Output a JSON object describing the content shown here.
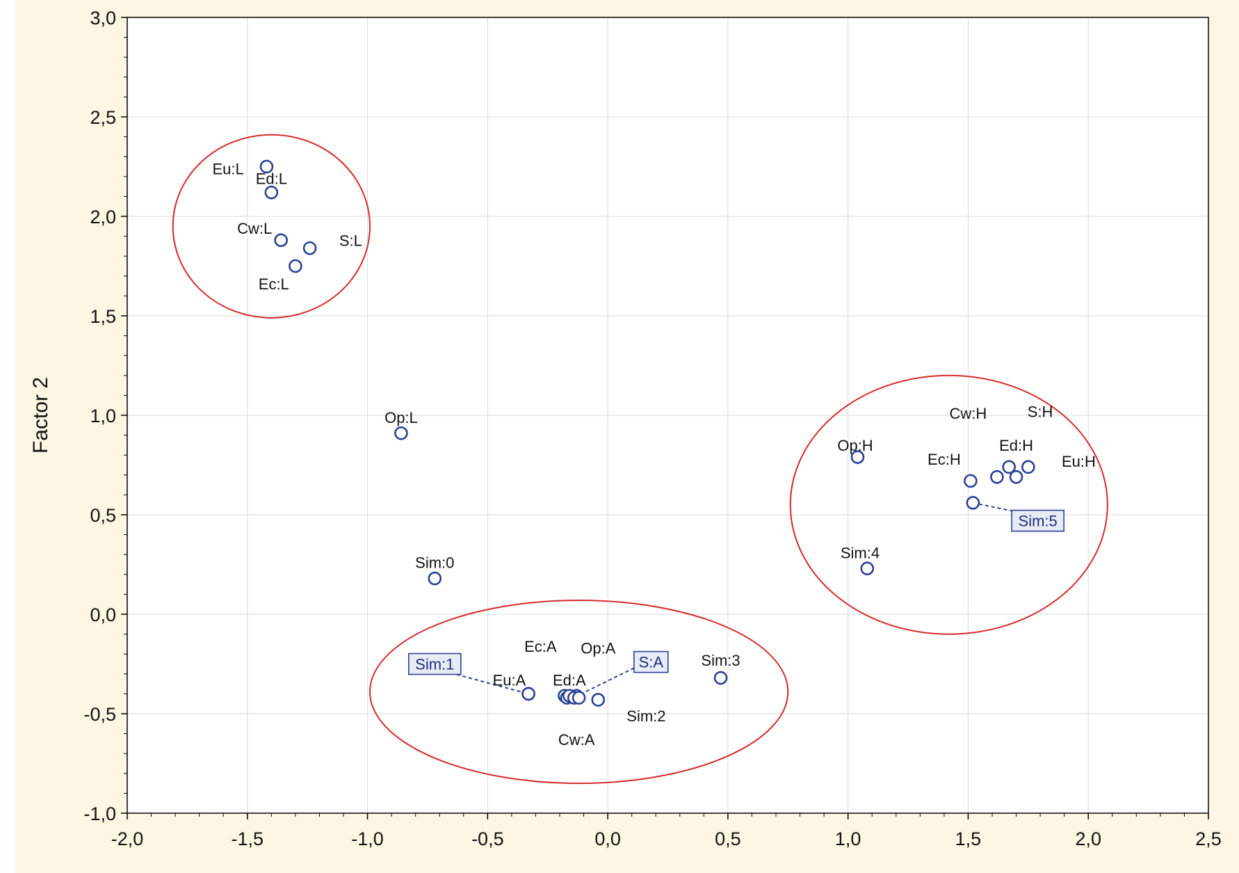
{
  "colors": {
    "background_panel": "#fdf6e3",
    "plot_background": "#ffffff",
    "grid": "#d9d9d9",
    "marker": "#2b3f96",
    "ellipse": "#d62a2a",
    "axis": "#000000"
  },
  "chart_data": {
    "type": "scatter",
    "xlabel": "",
    "ylabel": "Factor 2",
    "xlim": [
      -2.0,
      2.5
    ],
    "ylim": [
      -1.0,
      3.0
    ],
    "x_ticks": [
      "-2,0",
      "-1,5",
      "-1,0",
      "-0,5",
      "0,0",
      "0,5",
      "1,0",
      "1,5",
      "2,0",
      "2,5"
    ],
    "y_ticks": [
      "3,0",
      "2,5",
      "2,0",
      "1,5",
      "1,0",
      "0,5",
      "0,0",
      "-0,5",
      "-1,0"
    ],
    "grid": true,
    "points": [
      {
        "label": "Eu:L",
        "x": -1.42,
        "y": 2.25
      },
      {
        "label": "Ed:L",
        "x": -1.4,
        "y": 2.12
      },
      {
        "label": "Cw:L",
        "x": -1.36,
        "y": 1.88
      },
      {
        "label": "S:L",
        "x": -1.24,
        "y": 1.84
      },
      {
        "label": "Ec:L",
        "x": -1.3,
        "y": 1.75
      },
      {
        "label": "Op:L",
        "x": -0.86,
        "y": 0.91
      },
      {
        "label": "Sim:0",
        "x": -0.72,
        "y": 0.18
      },
      {
        "label": "Eu:A",
        "x": -0.33,
        "y": -0.4
      },
      {
        "label": "Sim:1",
        "x": -0.33,
        "y": -0.4
      },
      {
        "label": "Ec:A",
        "x": -0.18,
        "y": -0.41
      },
      {
        "label": "Cw:A",
        "x": -0.17,
        "y": -0.42
      },
      {
        "label": "Ed:A",
        "x": -0.16,
        "y": -0.41
      },
      {
        "label": "S:A",
        "x": -0.13,
        "y": -0.41
      },
      {
        "label": "",
        "x": -0.14,
        "y": -0.42
      },
      {
        "label": "Op:A",
        "x": -0.12,
        "y": -0.42
      },
      {
        "label": "Sim:2",
        "x": -0.04,
        "y": -0.43
      },
      {
        "label": "Sim:3",
        "x": 0.47,
        "y": -0.32
      },
      {
        "label": "Op:H",
        "x": 1.04,
        "y": 0.79
      },
      {
        "label": "Sim:4",
        "x": 1.08,
        "y": 0.23
      },
      {
        "label": "Ec:H",
        "x": 1.51,
        "y": 0.67
      },
      {
        "label": "Sim:5",
        "x": 1.52,
        "y": 0.56
      },
      {
        "label": "Cw:H",
        "x": 1.62,
        "y": 0.69
      },
      {
        "label": "Ed:H",
        "x": 1.67,
        "y": 0.74
      },
      {
        "label": "S:H",
        "x": 1.7,
        "y": 0.69
      },
      {
        "label": "Eu:H",
        "x": 1.75,
        "y": 0.74
      }
    ],
    "labels": [
      {
        "text": "Eu:L",
        "x": -1.58,
        "y": 2.24,
        "boxed": false
      },
      {
        "text": "Ed:L",
        "x": -1.4,
        "y": 2.19,
        "boxed": false
      },
      {
        "text": "Cw:L",
        "x": -1.47,
        "y": 1.94,
        "boxed": false
      },
      {
        "text": "S:L",
        "x": -1.07,
        "y": 1.88,
        "boxed": false
      },
      {
        "text": "Ec:L",
        "x": -1.39,
        "y": 1.66,
        "boxed": false
      },
      {
        "text": "Op:L",
        "x": -0.86,
        "y": 0.99,
        "boxed": false
      },
      {
        "text": "Sim:0",
        "x": -0.72,
        "y": 0.26,
        "boxed": false
      },
      {
        "text": "Ec:A",
        "x": -0.28,
        "y": -0.16,
        "boxed": false
      },
      {
        "text": "Op:A",
        "x": -0.04,
        "y": -0.17,
        "boxed": false
      },
      {
        "text": "Sim:1",
        "x": -0.72,
        "y": -0.25,
        "boxed": true
      },
      {
        "text": "S:A",
        "x": 0.18,
        "y": -0.24,
        "boxed": true
      },
      {
        "text": "Sim:3",
        "x": 0.47,
        "y": -0.23,
        "boxed": false
      },
      {
        "text": "Eu:A",
        "x": -0.41,
        "y": -0.33,
        "boxed": false
      },
      {
        "text": "Ed:A",
        "x": -0.16,
        "y": -0.33,
        "boxed": false
      },
      {
        "text": "Sim:2",
        "x": 0.16,
        "y": -0.51,
        "boxed": false
      },
      {
        "text": "Cw:A",
        "x": -0.13,
        "y": -0.63,
        "boxed": false
      },
      {
        "text": "Cw:H",
        "x": 1.5,
        "y": 1.01,
        "boxed": false
      },
      {
        "text": "S:H",
        "x": 1.8,
        "y": 1.02,
        "boxed": false
      },
      {
        "text": "Op:H",
        "x": 1.03,
        "y": 0.85,
        "boxed": false
      },
      {
        "text": "Ed:H",
        "x": 1.7,
        "y": 0.85,
        "boxed": false
      },
      {
        "text": "Ec:H",
        "x": 1.4,
        "y": 0.78,
        "boxed": false
      },
      {
        "text": "Eu:H",
        "x": 1.96,
        "y": 0.77,
        "boxed": false
      },
      {
        "text": "Sim:5",
        "x": 1.79,
        "y": 0.47,
        "boxed": true
      },
      {
        "text": "Sim:4",
        "x": 1.05,
        "y": 0.31,
        "boxed": false
      }
    ],
    "leaders": [
      {
        "from": [
          -0.73,
          -0.27
        ],
        "to": [
          -0.33,
          -0.4
        ]
      },
      {
        "from": [
          0.11,
          -0.27
        ],
        "to": [
          -0.11,
          -0.4
        ]
      },
      {
        "from": [
          1.52,
          0.56
        ],
        "to": [
          1.68,
          0.52
        ]
      }
    ],
    "clusters": [
      {
        "cx": -1.4,
        "cy": 1.95,
        "rx": 0.41,
        "ry": 0.46
      },
      {
        "cx": 1.42,
        "cy": 0.55,
        "rx": 0.66,
        "ry": 0.65
      },
      {
        "cx": -0.12,
        "cy": -0.39,
        "rx": 0.87,
        "ry": 0.46
      }
    ]
  }
}
